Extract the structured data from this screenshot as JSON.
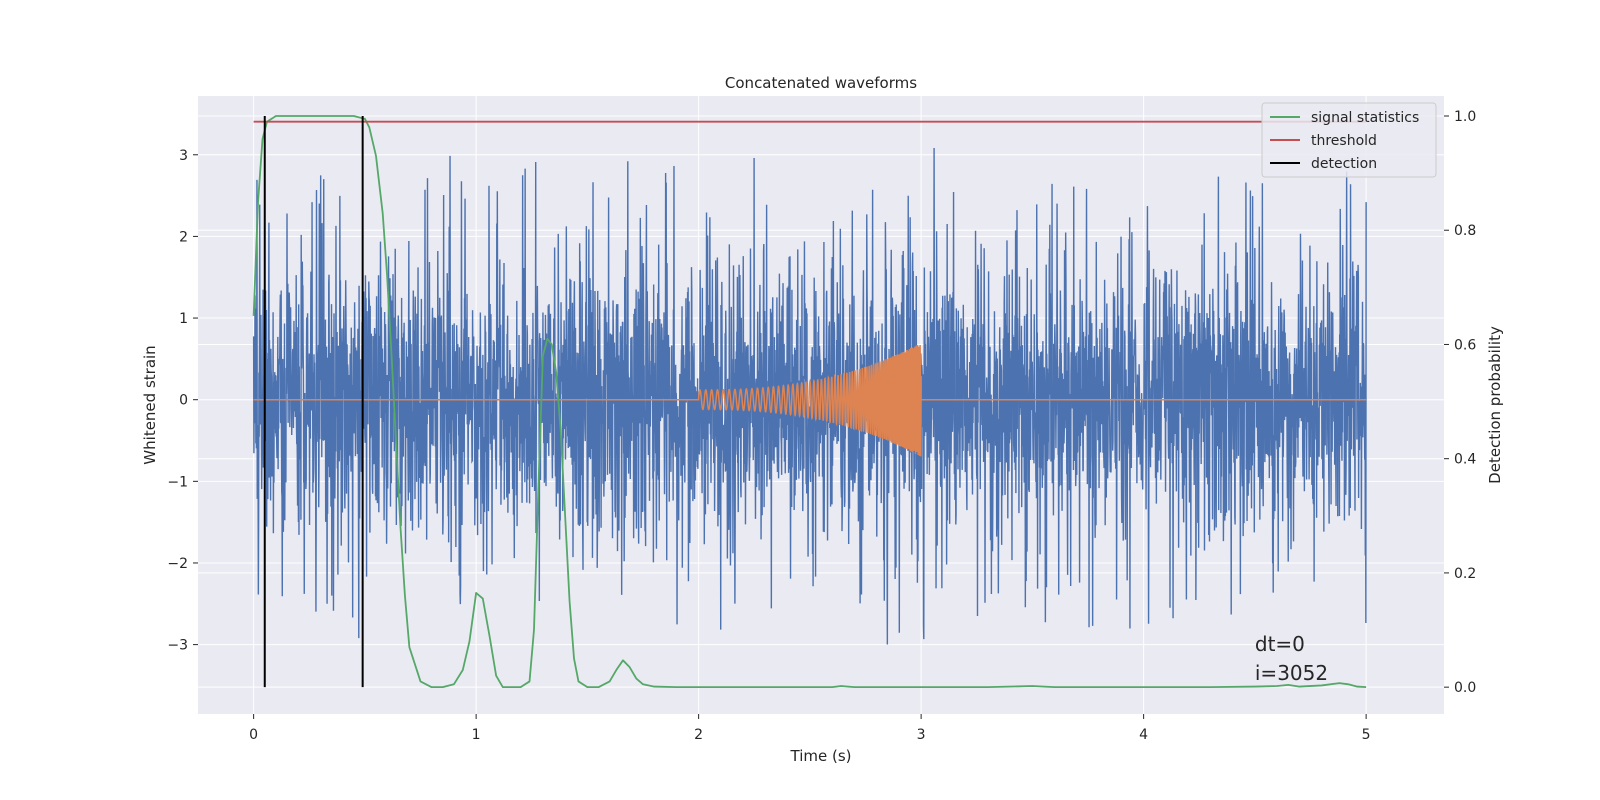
{
  "chart_data": {
    "type": "line",
    "title": "Concatenated waveforms",
    "xlabel": "Time (s)",
    "ylabel": "Whitened strain",
    "y2label": "Detection probability",
    "xlim": [
      -0.25,
      5.35
    ],
    "ylim": [
      -3.85,
      3.72
    ],
    "y2lim": [
      -0.047,
      1.035
    ],
    "xticks": [
      0,
      1,
      2,
      3,
      4,
      5
    ],
    "xtick_labels": [
      "0",
      "1",
      "2",
      "3",
      "4",
      "5"
    ],
    "yticks": [
      -3,
      -2,
      -1,
      0,
      1,
      2,
      3
    ],
    "ytick_labels": [
      "−3",
      "−2",
      "−1",
      "0",
      "1",
      "2",
      "3"
    ],
    "y2ticks": [
      0.0,
      0.2,
      0.4,
      0.6,
      0.8,
      1.0
    ],
    "y2tick_labels": [
      "0.0",
      "0.2",
      "0.4",
      "0.6",
      "0.8",
      "1.0"
    ],
    "grid": true,
    "legend_position": "top-right",
    "colors": {
      "background": "#eaeaf2",
      "grid": "#ffffff",
      "noise": "#4c72b0",
      "injection": "#dd8452",
      "statistic": "#55a868",
      "threshold": "#c44e52",
      "detection": "#000000"
    },
    "series": [
      {
        "name": "",
        "role": "whitened strain (noise)",
        "axis": "left",
        "x_range": [
          0,
          5
        ],
        "typical_amplitude": 0.75,
        "max_spike": 3.45,
        "min_spike": -3.5
      },
      {
        "name": "",
        "role": "injected chirp",
        "axis": "left",
        "x_range": [
          0,
          5
        ],
        "chirp_start": 2.0,
        "chirp_end": 3.0,
        "chirp_amplitude_start": 0.12,
        "chirp_amplitude_end": 0.7
      },
      {
        "name": "signal statistics",
        "axis": "right",
        "x": [
          0,
          0.02,
          0.04,
          0.06,
          0.1,
          0.2,
          0.3,
          0.4,
          0.45,
          0.5,
          0.52,
          0.55,
          0.58,
          0.6,
          0.62,
          0.64,
          0.66,
          0.68,
          0.7,
          0.75,
          0.8,
          0.85,
          0.9,
          0.94,
          0.97,
          1.0,
          1.03,
          1.06,
          1.09,
          1.12,
          1.15,
          1.2,
          1.24,
          1.26,
          1.28,
          1.3,
          1.32,
          1.34,
          1.36,
          1.38,
          1.4,
          1.42,
          1.44,
          1.46,
          1.5,
          1.55,
          1.6,
          1.63,
          1.66,
          1.69,
          1.72,
          1.75,
          1.8,
          1.9,
          2.0,
          2.3,
          2.6,
          2.64,
          2.7,
          3.0,
          3.3,
          3.5,
          3.6,
          4.0,
          4.3,
          4.5,
          4.6,
          4.65,
          4.7,
          4.8,
          4.88,
          4.92,
          4.96,
          5.0
        ],
        "y": [
          0.65,
          0.85,
          0.96,
          0.99,
          1.0,
          1.0,
          1.0,
          1.0,
          1.0,
          0.995,
          0.98,
          0.93,
          0.83,
          0.72,
          0.58,
          0.43,
          0.28,
          0.16,
          0.07,
          0.01,
          0.0,
          0.0,
          0.005,
          0.03,
          0.08,
          0.165,
          0.155,
          0.09,
          0.02,
          0.0,
          0.0,
          0.0,
          0.01,
          0.1,
          0.35,
          0.58,
          0.61,
          0.6,
          0.55,
          0.45,
          0.3,
          0.15,
          0.05,
          0.01,
          0.0,
          0.0,
          0.01,
          0.03,
          0.047,
          0.035,
          0.015,
          0.005,
          0.001,
          0.0,
          0.0,
          0.0,
          0.0,
          0.002,
          0.0,
          0.0,
          0.0,
          0.002,
          0.0,
          0.0,
          0.0,
          0.001,
          0.002,
          0.004,
          0.001,
          0.003,
          0.007,
          0.005,
          0.001,
          0.0
        ]
      },
      {
        "name": "threshold",
        "axis": "right",
        "x": [
          0,
          5
        ],
        "y": [
          0.99,
          0.99
        ]
      },
      {
        "name": "detection",
        "axis": "right",
        "vlines": [
          0.05,
          0.49
        ],
        "y_range": [
          0.0,
          1.0
        ]
      }
    ],
    "annotations": [
      "dt=0",
      "i=3052"
    ],
    "annotation_position": [
      4.5,
      -3.08
    ]
  }
}
